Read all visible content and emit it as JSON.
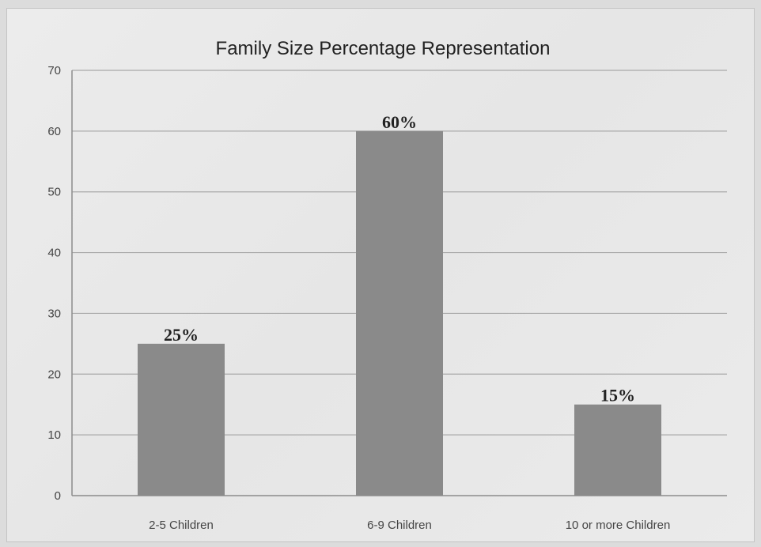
{
  "chart_data": {
    "type": "bar",
    "title": "Family Size Percentage Representation",
    "categories": [
      "2-5 Children",
      "6-9 Children",
      "10 or more Children"
    ],
    "values": [
      25,
      60,
      15
    ],
    "data_labels": [
      "25%",
      "60%",
      "15%"
    ],
    "ylim": [
      0,
      70
    ],
    "yticks": [
      "0",
      "10",
      "20",
      "30",
      "40",
      "50",
      "60",
      "70"
    ],
    "xlabel": "",
    "ylabel": "",
    "grid": true,
    "colors": {
      "bar": "#8a8a8a",
      "grid": "#a9a9a9"
    }
  }
}
